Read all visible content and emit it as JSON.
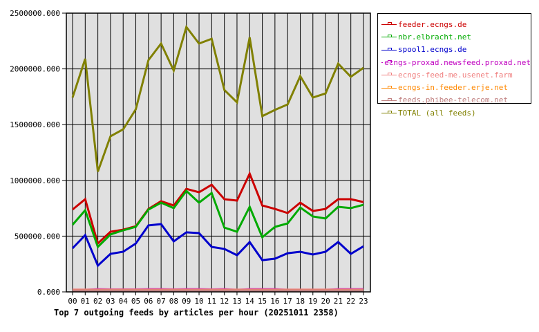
{
  "chart_data": {
    "type": "line",
    "title": "Top 7 outgoing feeds by articles per hour (20251011 2358)",
    "xlabel": "",
    "ylabel": "",
    "ylim": [
      0,
      2500000
    ],
    "yticks": [
      "0.000",
      "500000.000",
      "1000000.000",
      "1500000.000",
      "2000000.000",
      "2500000.000"
    ],
    "grid": true,
    "legend_position": "right",
    "categories": [
      "00",
      "01",
      "02",
      "03",
      "04",
      "05",
      "06",
      "07",
      "08",
      "09",
      "10",
      "11",
      "12",
      "13",
      "14",
      "15",
      "16",
      "17",
      "18",
      "19",
      "20",
      "21",
      "22",
      "23"
    ],
    "series": [
      {
        "name": "feeder.ecngs.de",
        "color": "#cc0000",
        "values": [
          738000,
          831000,
          434000,
          540000,
          558000,
          589000,
          744000,
          813000,
          775000,
          924000,
          893000,
          961000,
          831000,
          819000,
          1061000,
          775000,
          744000,
          707000,
          800000,
          726000,
          744000,
          831000,
          831000,
          806000
        ]
      },
      {
        "name": "nbr.elbracht.net",
        "color": "#00aa00",
        "values": [
          602000,
          732000,
          403000,
          515000,
          552000,
          583000,
          738000,
          800000,
          751000,
          906000,
          800000,
          887000,
          577000,
          540000,
          763000,
          490000,
          583000,
          614000,
          757000,
          676000,
          658000,
          763000,
          751000,
          781000
        ]
      },
      {
        "name": "spool1.ecngs.de",
        "color": "#0000cc",
        "values": [
          391000,
          509000,
          236000,
          341000,
          360000,
          434000,
          596000,
          608000,
          453000,
          534000,
          527000,
          403000,
          385000,
          329000,
          447000,
          285000,
          298000,
          347000,
          360000,
          335000,
          360000,
          447000,
          341000,
          409000
        ]
      },
      {
        "name": "ecngs-proxad.newsfeed.proxad.net",
        "color": "#c000c0",
        "values": [
          18000,
          18000,
          24000,
          22000,
          22000,
          22000,
          24000,
          24000,
          22000,
          24000,
          24000,
          22000,
          24000,
          18000,
          24000,
          24000,
          24000,
          18000,
          18000,
          18000,
          18000,
          24000,
          24000,
          24000
        ]
      },
      {
        "name": "ecngs-feed-me.usenet.farm",
        "color": "#f08080",
        "values": [
          20000,
          20000,
          20000,
          20000,
          20000,
          20000,
          20000,
          20000,
          20000,
          20000,
          20000,
          20000,
          20000,
          20000,
          20000,
          20000,
          20000,
          20000,
          20000,
          20000,
          20000,
          20000,
          20000,
          20000
        ]
      },
      {
        "name": "ecngs-in.feeder.erje.net",
        "color": "#ff8800",
        "values": [
          12000,
          12000,
          12000,
          12000,
          12000,
          12000,
          12000,
          12000,
          12000,
          12000,
          12000,
          12000,
          12000,
          12000,
          12000,
          12000,
          12000,
          12000,
          12000,
          12000,
          12000,
          12000,
          12000,
          12000
        ]
      },
      {
        "name": "feeds.phibee-telecom.net",
        "color": "#c08080",
        "values": [
          12000,
          12000,
          12000,
          12000,
          12000,
          12000,
          12000,
          12000,
          12000,
          12000,
          12000,
          12000,
          12000,
          12000,
          12000,
          12000,
          12000,
          12000,
          12000,
          12000,
          12000,
          12000,
          12000,
          12000
        ]
      },
      {
        "name": "TOTAL (all feeds)",
        "color": "#808000",
        "values": [
          1743000,
          2090000,
          1079000,
          1396000,
          1458000,
          1638000,
          2078000,
          2227000,
          1985000,
          2376000,
          2227000,
          2270000,
          1811000,
          1700000,
          2283000,
          1576000,
          1632000,
          1681000,
          1935000,
          1743000,
          1780000,
          2047000,
          1929000,
          2010000
        ]
      }
    ]
  },
  "colors": {
    "plot_background": "#e0e0e0",
    "grid": "#000000"
  }
}
